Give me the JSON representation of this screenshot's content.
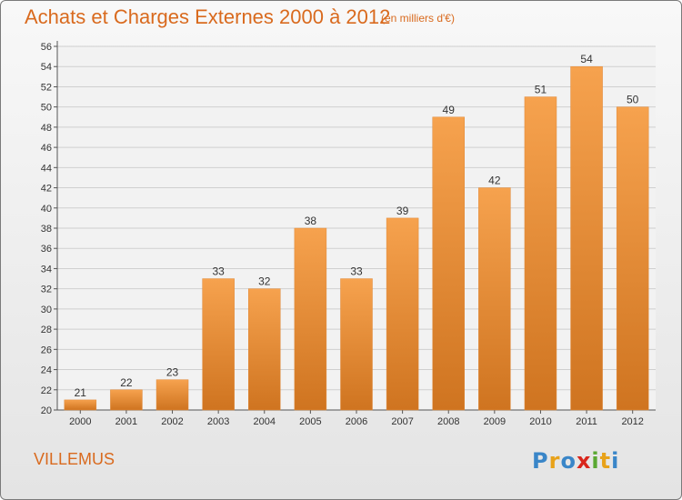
{
  "header": {
    "title": "Achats et Charges Externes 2000 à 2012",
    "subtitle": "(en milliers d'€)"
  },
  "footer": {
    "town": "VILLEMUS",
    "logo_text": "Proxiti",
    "logo_colors": [
      "#3a86c8",
      "#e8a21a",
      "#3a86c8",
      "#d9261c",
      "#5aa832",
      "#e8a21a",
      "#3a86c8"
    ]
  },
  "colors": {
    "accent": "#d96a1e",
    "bar_light": "#f6a24e",
    "bar_dark": "#cf7420"
  },
  "chart_data": {
    "type": "bar",
    "title": "Achats et Charges Externes 2000 à 2012",
    "subtitle": "(en milliers d'€)",
    "categories": [
      "2000",
      "2001",
      "2002",
      "2003",
      "2004",
      "2005",
      "2006",
      "2007",
      "2008",
      "2009",
      "2010",
      "2011",
      "2012"
    ],
    "values": [
      21,
      22,
      23,
      33,
      32,
      38,
      33,
      39,
      49,
      42,
      51,
      54,
      50
    ],
    "ylim": [
      20,
      56
    ],
    "yticks": [
      20,
      22,
      24,
      26,
      28,
      30,
      32,
      34,
      36,
      38,
      40,
      42,
      44,
      46,
      48,
      50,
      52,
      54,
      56
    ],
    "grid": true,
    "data_labels": true,
    "xlabel": "",
    "ylabel": ""
  }
}
